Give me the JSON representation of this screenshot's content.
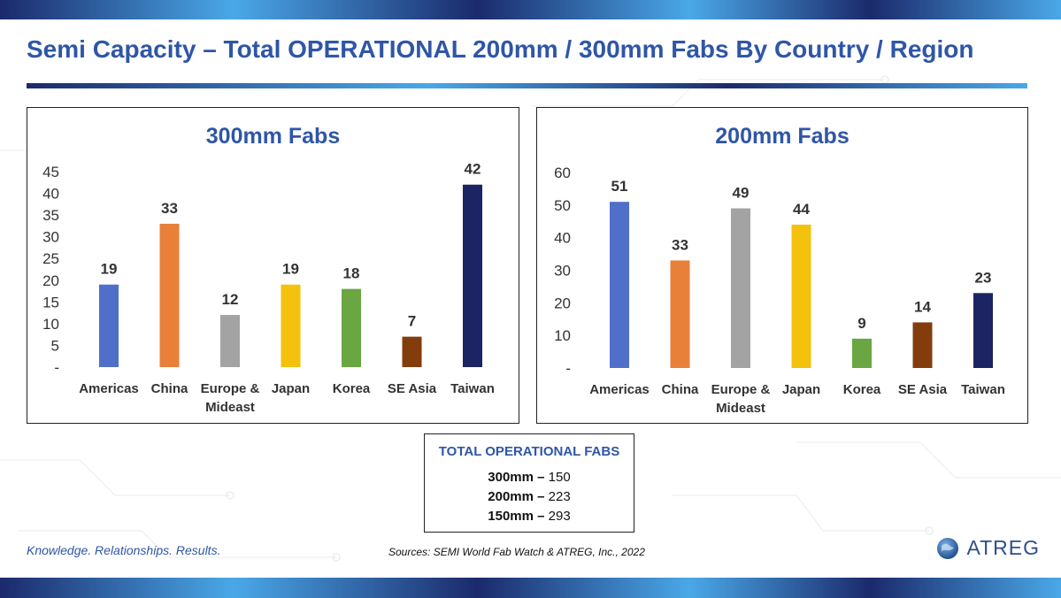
{
  "title": "Semi Capacity – Total OPERATIONAL 200mm / 300mm Fabs By Country / Region",
  "colors": {
    "title_blue": "#2f56a6",
    "band_dark": "#1b2a6b",
    "band_light": "#4aa8e8",
    "bar_colors": [
      "#4f6fc9",
      "#e8803a",
      "#a3a3a3",
      "#f4c20d",
      "#6aa642",
      "#833c0c",
      "#1c2463"
    ]
  },
  "chart_data": [
    {
      "type": "bar",
      "title": "300mm Fabs",
      "categories": [
        "Americas",
        "China",
        "Europe & Mideast",
        "Japan",
        "Korea",
        "SE Asia",
        "Taiwan"
      ],
      "category_lines": [
        [
          "Americas"
        ],
        [
          "China"
        ],
        [
          "Europe &",
          "Mideast"
        ],
        [
          "Japan"
        ],
        [
          "Korea"
        ],
        [
          "SE Asia"
        ],
        [
          "Taiwan"
        ]
      ],
      "values": [
        19,
        33,
        12,
        19,
        18,
        7,
        42
      ],
      "ylim": [
        0,
        45
      ],
      "yticks": [
        0,
        5,
        10,
        15,
        20,
        25,
        30,
        35,
        40,
        45
      ],
      "ytick_labels": [
        "-",
        "5",
        "10",
        "15",
        "20",
        "25",
        "30",
        "35",
        "40",
        "45"
      ],
      "grid": false,
      "legend": "none",
      "data_labels": true
    },
    {
      "type": "bar",
      "title": "200mm Fabs",
      "categories": [
        "Americas",
        "China",
        "Europe & Mideast",
        "Japan",
        "Korea",
        "SE Asia",
        "Taiwan"
      ],
      "category_lines": [
        [
          "Americas"
        ],
        [
          "China"
        ],
        [
          "Europe &",
          "Mideast"
        ],
        [
          "Japan"
        ],
        [
          "Korea"
        ],
        [
          "SE Asia"
        ],
        [
          "Taiwan"
        ]
      ],
      "values": [
        51,
        33,
        49,
        44,
        9,
        14,
        23
      ],
      "ylim": [
        0,
        60
      ],
      "yticks": [
        0,
        10,
        20,
        30,
        40,
        50,
        60
      ],
      "ytick_labels": [
        "-",
        "10",
        "20",
        "30",
        "40",
        "50",
        "60"
      ],
      "grid": false,
      "legend": "none",
      "data_labels": true
    }
  ],
  "totals": {
    "title": "TOTAL OPERATIONAL FABS",
    "lines": [
      {
        "size": "300mm",
        "sep": " – ",
        "count": "150"
      },
      {
        "size": "200mm",
        "sep": " – ",
        "count": "223"
      },
      {
        "size": "150mm",
        "sep": " – ",
        "count": "293"
      }
    ]
  },
  "footer": {
    "tagline": "Knowledge. Relationships. Results.",
    "sources": "Sources: SEMI World Fab Watch & ATREG, Inc., 2022",
    "logo_text": "ATREG"
  }
}
